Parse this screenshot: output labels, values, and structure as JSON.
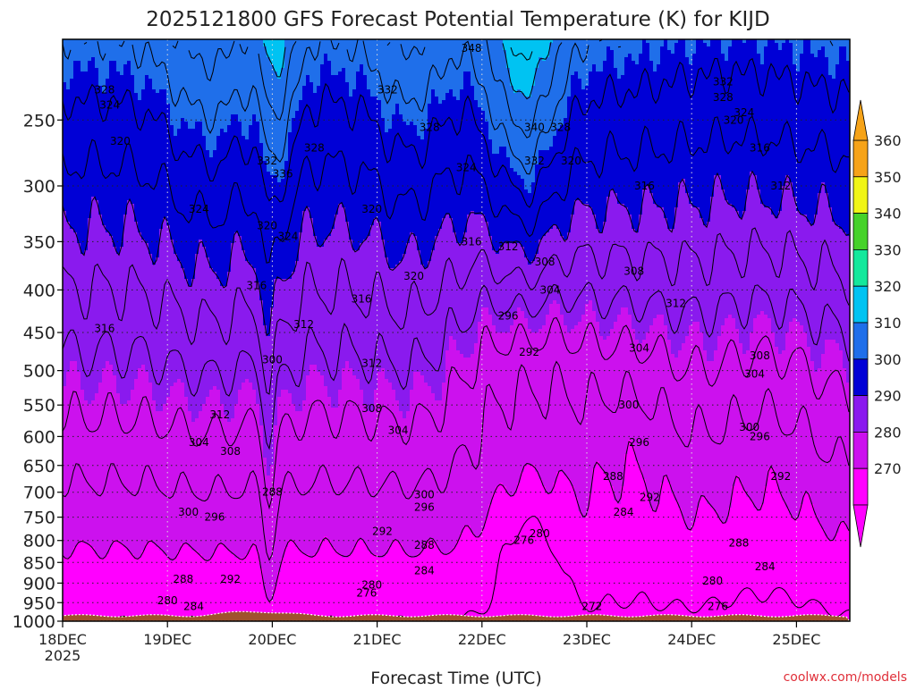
{
  "chart_data": {
    "type": "contour",
    "title": "2025121800 GFS Forecast Potential Temperature (K) for KIJD",
    "xlabel": "Forecast Time (UTC)",
    "ylabel": "",
    "credit": "coolwx.com/models",
    "x_ticks": [
      "18DEC",
      "19DEC",
      "20DEC",
      "21DEC",
      "22DEC",
      "23DEC",
      "24DEC",
      "25DEC"
    ],
    "x_sublabel": "2025",
    "y_ticks": [
      250,
      300,
      350,
      400,
      450,
      500,
      550,
      600,
      650,
      700,
      750,
      800,
      850,
      900,
      950,
      1000
    ],
    "ylim": [
      1000,
      200
    ],
    "levels": [
      270,
      280,
      290,
      300,
      310,
      320,
      330,
      340,
      350,
      360
    ],
    "colorbar_labels": [
      "270",
      "280",
      "290",
      "300",
      "310",
      "320",
      "330",
      "340",
      "350",
      "360"
    ],
    "colors": {
      "270": "#ff00ff",
      "280": "#cc11ee",
      "290": "#8a1aee",
      "300": "#0000d6",
      "310": "#1f6fea",
      "320": "#00c3f2",
      "330": "#14e89c",
      "340": "#46d22a",
      "350": "#f0f516",
      "360": "#f6a318",
      "terrain": "#a0522d"
    },
    "contour_labels": [
      {
        "t": 0.4,
        "p": 230,
        "v": "328"
      },
      {
        "t": 0.45,
        "p": 240,
        "v": "324"
      },
      {
        "t": 0.55,
        "p": 265,
        "v": "320"
      },
      {
        "t": 0.4,
        "p": 445,
        "v": "316"
      },
      {
        "t": 1.3,
        "p": 320,
        "v": "324"
      },
      {
        "t": 1.95,
        "p": 280,
        "v": "332"
      },
      {
        "t": 1.95,
        "p": 335,
        "v": "320"
      },
      {
        "t": 2.1,
        "p": 290,
        "v": "336"
      },
      {
        "t": 2.15,
        "p": 345,
        "v": "324"
      },
      {
        "t": 1.85,
        "p": 395,
        "v": "316"
      },
      {
        "t": 2.3,
        "p": 440,
        "v": "312"
      },
      {
        "t": 2.0,
        "p": 485,
        "v": "300"
      },
      {
        "t": 1.5,
        "p": 565,
        "v": "312"
      },
      {
        "t": 1.3,
        "p": 610,
        "v": "304"
      },
      {
        "t": 1.6,
        "p": 625,
        "v": "308"
      },
      {
        "t": 2.0,
        "p": 700,
        "v": "288"
      },
      {
        "t": 1.2,
        "p": 740,
        "v": "300"
      },
      {
        "t": 1.45,
        "p": 750,
        "v": "296"
      },
      {
        "t": 1.15,
        "p": 890,
        "v": "288"
      },
      {
        "t": 1.0,
        "p": 945,
        "v": "280"
      },
      {
        "t": 1.25,
        "p": 960,
        "v": "284"
      },
      {
        "t": 1.6,
        "p": 890,
        "v": "292"
      },
      {
        "t": 3.1,
        "p": 230,
        "v": "332"
      },
      {
        "t": 2.4,
        "p": 270,
        "v": "328"
      },
      {
        "t": 3.5,
        "p": 255,
        "v": "328"
      },
      {
        "t": 3.85,
        "p": 285,
        "v": "324"
      },
      {
        "t": 2.95,
        "p": 320,
        "v": "320"
      },
      {
        "t": 3.9,
        "p": 350,
        "v": "316"
      },
      {
        "t": 4.25,
        "p": 355,
        "v": "312"
      },
      {
        "t": 3.35,
        "p": 385,
        "v": "320"
      },
      {
        "t": 2.85,
        "p": 410,
        "v": "316"
      },
      {
        "t": 2.95,
        "p": 490,
        "v": "312"
      },
      {
        "t": 2.95,
        "p": 555,
        "v": "308"
      },
      {
        "t": 3.2,
        "p": 590,
        "v": "304"
      },
      {
        "t": 3.45,
        "p": 705,
        "v": "300"
      },
      {
        "t": 3.45,
        "p": 730,
        "v": "296"
      },
      {
        "t": 3.05,
        "p": 780,
        "v": "292"
      },
      {
        "t": 3.45,
        "p": 810,
        "v": "288"
      },
      {
        "t": 3.45,
        "p": 870,
        "v": "284"
      },
      {
        "t": 2.95,
        "p": 905,
        "v": "280"
      },
      {
        "t": 2.9,
        "p": 925,
        "v": "276"
      },
      {
        "t": 3.9,
        "p": 205,
        "v": "348"
      },
      {
        "t": 4.5,
        "p": 255,
        "v": "340"
      },
      {
        "t": 4.75,
        "p": 255,
        "v": "328"
      },
      {
        "t": 4.5,
        "p": 280,
        "v": "332"
      },
      {
        "t": 4.85,
        "p": 280,
        "v": "320"
      },
      {
        "t": 4.6,
        "p": 370,
        "v": "308"
      },
      {
        "t": 4.65,
        "p": 400,
        "v": "304"
      },
      {
        "t": 4.25,
        "p": 430,
        "v": "296"
      },
      {
        "t": 4.45,
        "p": 475,
        "v": "292"
      },
      {
        "t": 4.55,
        "p": 785,
        "v": "280"
      },
      {
        "t": 4.4,
        "p": 800,
        "v": "276"
      },
      {
        "t": 5.05,
        "p": 960,
        "v": "272"
      },
      {
        "t": 6.3,
        "p": 225,
        "v": "332"
      },
      {
        "t": 6.3,
        "p": 235,
        "v": "328"
      },
      {
        "t": 6.5,
        "p": 245,
        "v": "324"
      },
      {
        "t": 6.4,
        "p": 250,
        "v": "320"
      },
      {
        "t": 6.65,
        "p": 270,
        "v": "316"
      },
      {
        "t": 5.55,
        "p": 300,
        "v": "316"
      },
      {
        "t": 6.85,
        "p": 300,
        "v": "312"
      },
      {
        "t": 5.45,
        "p": 380,
        "v": "308"
      },
      {
        "t": 5.85,
        "p": 415,
        "v": "312"
      },
      {
        "t": 5.5,
        "p": 470,
        "v": "304"
      },
      {
        "t": 6.65,
        "p": 480,
        "v": "308"
      },
      {
        "t": 6.6,
        "p": 505,
        "v": "304"
      },
      {
        "t": 5.4,
        "p": 550,
        "v": "300"
      },
      {
        "t": 5.5,
        "p": 610,
        "v": "296"
      },
      {
        "t": 6.55,
        "p": 585,
        "v": "300"
      },
      {
        "t": 6.65,
        "p": 600,
        "v": "296"
      },
      {
        "t": 5.25,
        "p": 670,
        "v": "288"
      },
      {
        "t": 5.6,
        "p": 710,
        "v": "292"
      },
      {
        "t": 5.35,
        "p": 740,
        "v": "284"
      },
      {
        "t": 6.85,
        "p": 670,
        "v": "292"
      },
      {
        "t": 6.45,
        "p": 805,
        "v": "288"
      },
      {
        "t": 6.7,
        "p": 860,
        "v": "284"
      },
      {
        "t": 6.2,
        "p": 895,
        "v": "280"
      },
      {
        "t": 6.25,
        "p": 960,
        "v": "276"
      }
    ]
  }
}
